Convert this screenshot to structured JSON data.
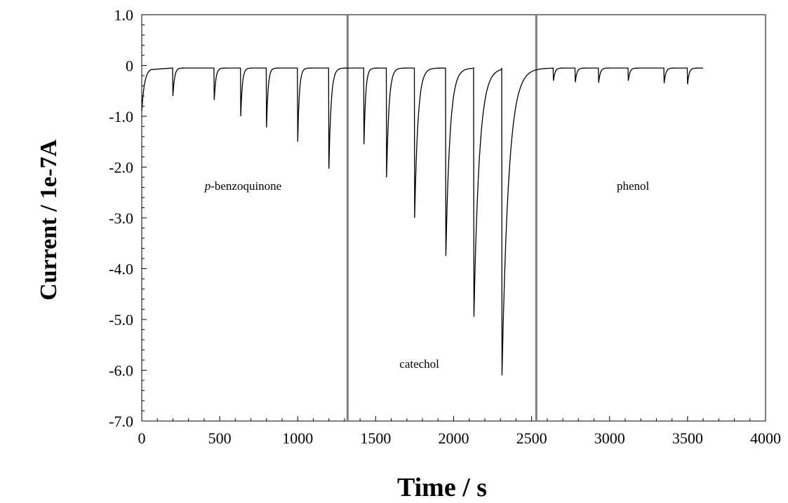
{
  "chart_data": {
    "type": "line",
    "title": "",
    "xlabel": "Time / s",
    "ylabel": "Current / 1e-7A",
    "xlim": [
      0,
      4000
    ],
    "ylim": [
      -7.0,
      1.0
    ],
    "grid": false,
    "x_ticks": [
      0,
      500,
      1000,
      1500,
      2000,
      2500,
      3000,
      3500,
      4000
    ],
    "x_tick_labels": [
      "0",
      "500",
      "1000",
      "1500",
      "2000",
      "2500",
      "3000",
      "3500",
      "4000"
    ],
    "y_ticks": [
      1.0,
      0,
      -1.0,
      -2.0,
      -3.0,
      -4.0,
      -5.0,
      -6.0,
      -7.0
    ],
    "y_tick_labels": [
      "1.0",
      "0",
      "-1.0",
      "-2.0",
      "-3.0",
      "-4.0",
      "-5.0",
      "-6.0",
      "-7.0"
    ],
    "dividers_x": [
      1320,
      2530
    ],
    "annotations": [
      {
        "text_italic": "p",
        "text": "-benzoquinone",
        "x": 650,
        "y": -2.45
      },
      {
        "text": "catechol",
        "x": 1780,
        "y": -5.95
      },
      {
        "text": "phenol",
        "x": 3150,
        "y": -2.45
      }
    ],
    "baseline": -0.05,
    "start": {
      "x": 0,
      "y": -0.9
    },
    "end_x": 3600,
    "peaks": [
      {
        "x": 200,
        "y": -0.6
      },
      {
        "x": 465,
        "y": -0.68
      },
      {
        "x": 635,
        "y": -1.0
      },
      {
        "x": 800,
        "y": -1.22
      },
      {
        "x": 1000,
        "y": -1.5
      },
      {
        "x": 1200,
        "y": -2.03
      },
      {
        "x": 1425,
        "y": -1.55
      },
      {
        "x": 1570,
        "y": -2.2
      },
      {
        "x": 1750,
        "y": -3.0
      },
      {
        "x": 1950,
        "y": -3.75
      },
      {
        "x": 2130,
        "y": -4.95
      },
      {
        "x": 2310,
        "y": -6.1
      },
      {
        "x": 2640,
        "y": -0.3
      },
      {
        "x": 2780,
        "y": -0.33
      },
      {
        "x": 2930,
        "y": -0.34
      },
      {
        "x": 3120,
        "y": -0.3
      },
      {
        "x": 3350,
        "y": -0.35
      },
      {
        "x": 3500,
        "y": -0.37
      }
    ]
  }
}
